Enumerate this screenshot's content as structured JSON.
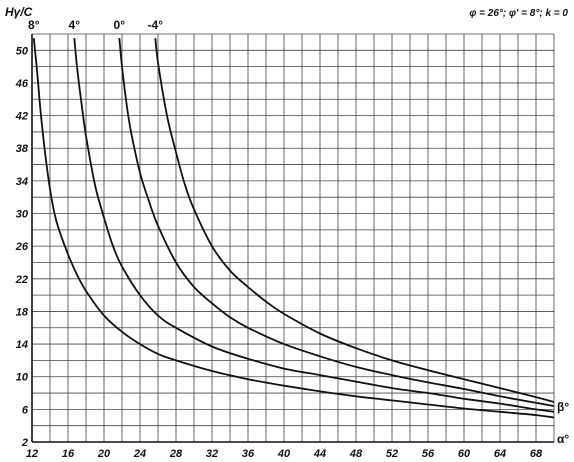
{
  "chart_data": {
    "type": "line",
    "title": "",
    "ylabel": "Hγ/C",
    "xlabel": "",
    "parameters": "φ = 26°; φ' = 8°; k = 0",
    "right_labels": [
      "β°",
      "α°"
    ],
    "xlim": [
      12,
      70
    ],
    "ylim": [
      2,
      52
    ],
    "xticks": [
      12,
      16,
      20,
      24,
      28,
      32,
      36,
      40,
      44,
      48,
      52,
      56,
      60,
      64,
      68
    ],
    "yticks": [
      2,
      6,
      10,
      14,
      18,
      22,
      26,
      30,
      34,
      38,
      42,
      46,
      50
    ],
    "grid": true,
    "series": [
      {
        "name": "8°",
        "x": [
          12.2,
          12.6,
          13,
          13.5,
          14,
          14.5,
          15,
          16,
          17,
          18,
          20,
          22,
          24,
          26,
          28,
          32,
          36,
          40,
          44,
          48,
          52,
          56,
          60,
          64,
          68,
          70
        ],
        "y": [
          51.5,
          47,
          42,
          37,
          33,
          30,
          28,
          25,
          22.5,
          20.5,
          17.5,
          15.5,
          14,
          12.8,
          12,
          10.7,
          9.7,
          8.9,
          8.2,
          7.6,
          7.1,
          6.6,
          6.1,
          5.7,
          5.3,
          5.0
        ]
      },
      {
        "name": "4°",
        "x": [
          16.7,
          17,
          17.5,
          18,
          19,
          20,
          21,
          22,
          24,
          26,
          28,
          32,
          36,
          40,
          44,
          48,
          52,
          56,
          60,
          64,
          68,
          70
        ],
        "y": [
          51.5,
          48,
          43.5,
          39.5,
          33.5,
          29.5,
          26,
          23.5,
          20,
          17.5,
          16,
          13.7,
          12.2,
          11,
          10.2,
          9.4,
          8.6,
          8,
          7.3,
          6.7,
          6.0,
          5.7
        ]
      },
      {
        "name": "0°",
        "x": [
          21.7,
          22,
          22.5,
          23,
          24,
          25,
          26,
          28,
          30,
          32,
          34,
          36,
          40,
          44,
          48,
          52,
          56,
          60,
          64,
          68,
          70
        ],
        "y": [
          51.5,
          48,
          43.5,
          40,
          35,
          31.5,
          28.5,
          24,
          21,
          19,
          17.3,
          16,
          14,
          12.5,
          11.2,
          10.2,
          9.3,
          8.5,
          7.6,
          6.8,
          6.4
        ]
      },
      {
        "name": "-4°",
        "x": [
          25.7,
          26,
          27,
          28,
          29,
          30,
          32,
          34,
          36,
          38,
          40,
          44,
          48,
          52,
          56,
          60,
          64,
          68,
          70
        ],
        "y": [
          51.5,
          48.5,
          42,
          37.5,
          33.5,
          30.5,
          26,
          23,
          21,
          19.2,
          17.7,
          15.3,
          13.5,
          12,
          10.8,
          9.7,
          8.6,
          7.5,
          6.9
        ]
      }
    ]
  }
}
